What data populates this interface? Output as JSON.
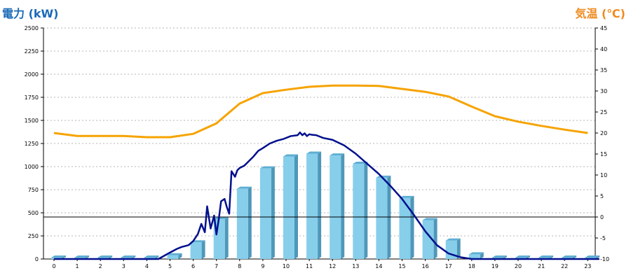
{
  "titles": {
    "left_axis": "電力 (kW)",
    "right_axis": "気温 (℃)"
  },
  "colors": {
    "bar_front": "#87ceeb",
    "bar_side": "#4f97b9",
    "bar_top": "#5eaed3",
    "power_line": "#000f8c",
    "temp_line": "#f6a300",
    "left_title": "#1a6ab8",
    "right_title": "#f08a1e"
  },
  "chart_data": {
    "type": "bar",
    "title": "",
    "xlabel": "",
    "ylabel_left": "電力 (kW)",
    "ylabel_right": "気温 (℃)",
    "x_ticks": [
      "0",
      "1",
      "2",
      "3",
      "4",
      "5",
      "6",
      "7",
      "8",
      "9",
      "10",
      "11",
      "12",
      "13",
      "14",
      "15",
      "16",
      "17",
      "18",
      "19",
      "20",
      "21",
      "22",
      "23"
    ],
    "y_left_ticks": [
      "0",
      "250",
      "500",
      "750",
      "1000",
      "1250",
      "1500",
      "1750",
      "2000",
      "2250",
      "2500"
    ],
    "y_right_ticks": [
      "-10",
      "-5",
      "0",
      "5",
      "10",
      "15",
      "20",
      "25",
      "30",
      "35",
      "40",
      "45"
    ],
    "ylim_left": [
      0,
      2500
    ],
    "ylim_right": [
      -10,
      45
    ],
    "grid": "horizontal dotted",
    "reference_line": {
      "axis": "right",
      "value": 0
    },
    "series": [
      {
        "type": "bar",
        "axis": "left",
        "values": [
          15,
          15,
          15,
          15,
          15,
          40,
          180,
          430,
          760,
          980,
          1110,
          1140,
          1120,
          1030,
          880,
          660,
          420,
          200,
          50,
          15,
          15,
          15,
          15,
          15
        ]
      },
      {
        "type": "line",
        "axis": "left",
        "x": [
          0,
          4.5,
          5.0,
          5.3,
          5.5,
          5.8,
          6.0,
          6.2,
          6.35,
          6.5,
          6.6,
          6.75,
          6.9,
          7.0,
          7.1,
          7.2,
          7.35,
          7.45,
          7.55,
          7.65,
          7.8,
          7.9,
          8.0,
          8.2,
          8.4,
          8.6,
          8.8,
          9.0,
          9.3,
          9.6,
          9.9,
          10.2,
          10.5,
          10.6,
          10.7,
          10.8,
          10.9,
          11.0,
          11.1,
          11.3,
          11.6,
          12.0,
          12.5,
          13.0,
          13.5,
          14.0,
          14.5,
          15.0,
          15.5,
          16.0,
          16.5,
          17.0,
          17.5,
          18.0,
          23.5
        ],
        "values": [
          0,
          0,
          70,
          110,
          130,
          150,
          195,
          270,
          380,
          290,
          570,
          330,
          470,
          265,
          430,
          625,
          650,
          560,
          490,
          950,
          890,
          960,
          985,
          1010,
          1060,
          1110,
          1170,
          1200,
          1250,
          1280,
          1300,
          1330,
          1340,
          1370,
          1340,
          1360,
          1330,
          1350,
          1345,
          1340,
          1310,
          1290,
          1230,
          1140,
          1030,
          920,
          790,
          650,
          480,
          300,
          150,
          60,
          20,
          0,
          0
        ]
      },
      {
        "type": "line",
        "axis": "right",
        "x": [
          0,
          1,
          2,
          3,
          4,
          5,
          6,
          7,
          8,
          9,
          10,
          11,
          12,
          13,
          14,
          15,
          16,
          17,
          18,
          19,
          20,
          21,
          22,
          23
        ],
        "values": [
          20.0,
          19.3,
          19.3,
          19.3,
          19.0,
          19.0,
          19.8,
          22.3,
          27.0,
          29.5,
          30.3,
          31.0,
          31.3,
          31.3,
          31.2,
          30.5,
          29.8,
          28.7,
          26.3,
          24.0,
          22.7,
          21.7,
          20.8,
          20.0
        ]
      }
    ]
  }
}
